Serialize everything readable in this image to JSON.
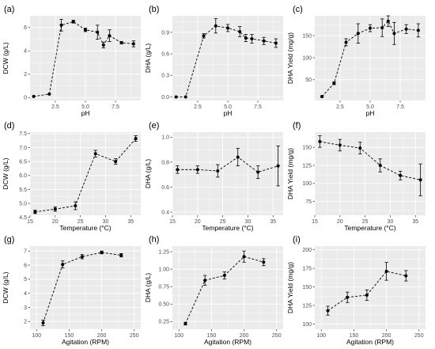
{
  "chart_data": [
    {
      "type": "line",
      "panel": "(a)",
      "xlabel": "pH",
      "ylabel": "DCW (g/L)",
      "xlim": [
        0.4,
        9.6
      ],
      "ylim": [
        -0.25,
        7.0
      ],
      "xticks": [
        2.5,
        5.0,
        7.5
      ],
      "yticks": [
        0,
        2,
        4,
        6
      ],
      "x": [
        0.7,
        2.0,
        3.0,
        4.0,
        5.0,
        6.0,
        6.5,
        7.0,
        8.0,
        9.0
      ],
      "y": [
        0.1,
        0.3,
        6.2,
        6.5,
        5.8,
        5.6,
        4.5,
        5.3,
        4.7,
        4.6
      ],
      "err": [
        0,
        0,
        0.5,
        0.12,
        0.15,
        0.6,
        0.25,
        0.5,
        0.1,
        0.25
      ],
      "grid": true,
      "line_style": "dashed"
    },
    {
      "type": "line",
      "panel": "(b)",
      "xlabel": "pH",
      "ylabel": "DHA (g/L)",
      "xlim": [
        0.4,
        9.6
      ],
      "ylim": [
        -0.05,
        1.13
      ],
      "xticks": [
        2.5,
        5.0,
        7.5
      ],
      "yticks": [
        0.0,
        0.3,
        0.6,
        0.9
      ],
      "x": [
        0.7,
        1.5,
        3.0,
        4.0,
        5.0,
        6.0,
        6.5,
        7.0,
        8.0,
        9.0
      ],
      "y": [
        0.0,
        0.0,
        0.85,
        0.99,
        0.96,
        0.91,
        0.82,
        0.81,
        0.78,
        0.75
      ],
      "err": [
        0,
        0,
        0.03,
        0.1,
        0.05,
        0.07,
        0.05,
        0.06,
        0.05,
        0.06
      ],
      "grid": true,
      "line_style": "dashed"
    },
    {
      "type": "line",
      "panel": "(c)",
      "xlabel": "pH",
      "ylabel": "DHA Yield (mg/g)",
      "xlim": [
        0.4,
        9.6
      ],
      "ylim": [
        3,
        195
      ],
      "xticks": [
        2.5,
        5.0,
        7.5
      ],
      "yticks": [
        50,
        100,
        150
      ],
      "x": [
        1.0,
        2.0,
        3.0,
        4.0,
        5.0,
        6.0,
        6.5,
        7.0,
        8.0,
        9.0
      ],
      "y": [
        12,
        42,
        135,
        155,
        167,
        168,
        183,
        155,
        165,
        162
      ],
      "err": [
        2,
        3,
        8,
        22,
        8,
        20,
        12,
        25,
        10,
        15
      ],
      "grid": true,
      "line_style": "dashed"
    },
    {
      "type": "line",
      "panel": "(d)",
      "xlabel": "Temperature (°C)",
      "ylabel": "DCW (g/L)",
      "xlim": [
        15,
        37
      ],
      "ylim": [
        4.58,
        7.55
      ],
      "xticks": [
        15,
        20,
        25,
        30,
        35
      ],
      "yticks": [
        4.5,
        5.0,
        5.5,
        6.0,
        6.5,
        7.0,
        7.5
      ],
      "x": [
        16,
        20,
        24,
        28,
        32,
        36
      ],
      "y": [
        4.7,
        4.8,
        4.92,
        6.78,
        6.5,
        7.32
      ],
      "err": [
        0.06,
        0.08,
        0.14,
        0.12,
        0.1,
        0.1
      ],
      "grid": true,
      "line_style": "dashed"
    },
    {
      "type": "line",
      "panel": "(e)",
      "xlabel": "Temperature (°C)",
      "ylabel": "DHA (g/L)",
      "xlim": [
        15,
        37
      ],
      "ylim": [
        0.375,
        1.04
      ],
      "xticks": [
        15,
        20,
        25,
        30,
        35
      ],
      "yticks": [
        0.4,
        0.6,
        0.8,
        1.0
      ],
      "x": [
        16,
        20,
        24,
        28,
        32,
        36
      ],
      "y": [
        0.74,
        0.74,
        0.73,
        0.84,
        0.72,
        0.77
      ],
      "err": [
        0.03,
        0.03,
        0.05,
        0.07,
        0.05,
        0.16
      ],
      "grid": true,
      "line_style": "dashed"
    },
    {
      "type": "line",
      "panel": "(f)",
      "xlabel": "Temperature (°C)",
      "ylabel": "DHA Yield (mg/g)",
      "xlim": [
        15,
        37
      ],
      "ylim": [
        56,
        171
      ],
      "xticks": [
        15,
        20,
        25,
        30,
        35
      ],
      "yticks": [
        75,
        100,
        125,
        150
      ],
      "x": [
        16,
        20,
        24,
        28,
        32,
        36
      ],
      "y": [
        158,
        153,
        149,
        125,
        111,
        105
      ],
      "err": [
        8,
        8,
        8,
        9,
        6,
        22
      ],
      "grid": true,
      "line_style": "dashed"
    },
    {
      "type": "line",
      "panel": "(g)",
      "xlabel": "Agitation (RPM)",
      "ylabel": "DCW (g/L)",
      "xlim": [
        90,
        260
      ],
      "ylim": [
        1.45,
        7.35
      ],
      "xticks": [
        100,
        150,
        200,
        250
      ],
      "yticks": [
        2,
        3,
        4,
        5,
        6,
        7
      ],
      "x": [
        110,
        140,
        170,
        200,
        230
      ],
      "y": [
        1.9,
        6.05,
        6.6,
        6.9,
        6.7
      ],
      "err": [
        0.2,
        0.25,
        0.15,
        0.1,
        0.12
      ],
      "grid": true,
      "line_style": "dashed"
    },
    {
      "type": "line",
      "panel": "(h)",
      "xlabel": "Agitation (RPM)",
      "ylabel": "DHA (g/L)",
      "xlim": [
        90,
        260
      ],
      "ylim": [
        0.14,
        1.33
      ],
      "xticks": [
        100,
        150,
        200,
        250
      ],
      "yticks": [
        0.25,
        0.5,
        0.75,
        1.0,
        1.25
      ],
      "x": [
        110,
        140,
        170,
        200,
        230
      ],
      "y": [
        0.22,
        0.84,
        0.91,
        1.18,
        1.1
      ],
      "err": [
        0.02,
        0.07,
        0.05,
        0.08,
        0.05
      ],
      "grid": true,
      "line_style": "dashed"
    },
    {
      "type": "line",
      "panel": "(i)",
      "xlabel": "Agitation (RPM)",
      "ylabel": "DHA Yield (mg/g)",
      "xlim": [
        90,
        260
      ],
      "ylim": [
        93,
        205
      ],
      "xticks": [
        100,
        150,
        200,
        250
      ],
      "yticks": [
        100,
        125,
        150,
        175,
        200
      ],
      "x": [
        110,
        140,
        170,
        200,
        230
      ],
      "y": [
        118,
        136,
        139,
        171,
        165
      ],
      "err": [
        6,
        7,
        7,
        12,
        7
      ],
      "grid": true,
      "line_style": "dashed"
    }
  ],
  "style": {
    "panel_background": "#ebebeb",
    "major_grid_color": "#ffffff",
    "line_color": "#000000",
    "point_color": "#000000"
  }
}
